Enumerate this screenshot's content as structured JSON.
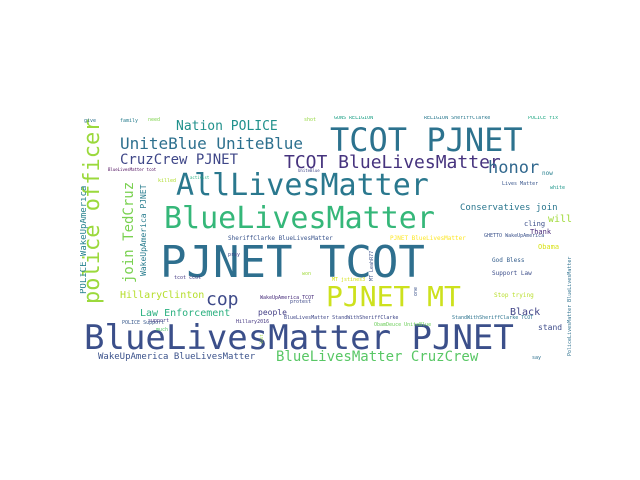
{
  "words": [
    {
      "text": "PJNET TCOT",
      "color": "#2e6f8e"
    },
    {
      "text": "BlueLivesMatter PJNET",
      "color": "#3b4f8a"
    },
    {
      "text": "AllLivesMatter",
      "color": "#2a788e"
    },
    {
      "text": "BlueLivesMatter",
      "color": "#35b779"
    },
    {
      "text": "TCOT PJNET",
      "color": "#2c728e"
    },
    {
      "text": "PJNET MT",
      "color": "#cde11d"
    },
    {
      "text": "police officer",
      "color": "#9bd93c"
    },
    {
      "text": "TCOT BlueLivesMatter",
      "color": "#46337e"
    },
    {
      "text": "UniteBlue UniteBlue",
      "color": "#2d708e"
    },
    {
      "text": "CruzCrew PJNET",
      "color": "#3f4788"
    },
    {
      "text": "cop",
      "color": "#3e4a89"
    },
    {
      "text": "honor",
      "color": "#31688e"
    },
    {
      "text": "join TedCruz",
      "color": "#7ad151"
    },
    {
      "text": "BlueLivesMatter CruzCrew",
      "color": "#58c765"
    },
    {
      "text": "Nation POLICE",
      "color": "#21918c"
    },
    {
      "text": "POLICE WakeUpAmerica",
      "color": "#26828e"
    },
    {
      "text": "WakeUpAmerica PJNET",
      "color": "#287c8e"
    },
    {
      "text": "HillaryClinton",
      "color": "#b5de2b"
    },
    {
      "text": "Law Enforcement",
      "color": "#2ab07f"
    },
    {
      "text": "WakeUpAmerica BlueLivesMatter",
      "color": "#3b528b"
    },
    {
      "text": "Conservatives join",
      "color": "#2a768e"
    },
    {
      "text": "Black",
      "color": "#414487"
    },
    {
      "text": "will",
      "color": "#a0da39"
    },
    {
      "text": "people",
      "color": "#433e85"
    },
    {
      "text": "stand",
      "color": "#3e4c8a"
    },
    {
      "text": "Obama",
      "color": "#d8e219"
    },
    {
      "text": "God Bless",
      "color": "#355f8d"
    },
    {
      "text": "Support Law",
      "color": "#3d4e8a"
    },
    {
      "text": "Stop trying",
      "color": "#b8de29"
    },
    {
      "text": "cling",
      "color": "#3c4f8a"
    },
    {
      "text": "Thank",
      "color": "#482878"
    },
    {
      "text": "now",
      "color": "#277f8e"
    },
    {
      "text": "SheriffClarke BlueLivesMatter",
      "color": "#3a548c"
    },
    {
      "text": "PJNET BlueLivesMatter",
      "color": "#fde725"
    },
    {
      "text": "GHETTO WakeUpAmerica",
      "color": "#3b528b"
    },
    {
      "text": "WakeUpAmerica TCOT",
      "color": "#472d7b"
    },
    {
      "text": "protest",
      "color": "#3e4989"
    },
    {
      "text": "Hillary2016",
      "color": "#453781"
    },
    {
      "text": "POLICE Support",
      "color": "#38598c"
    },
    {
      "text": "BlueLivesMatter StandWithSheriffClarke",
      "color": "#3f4788"
    },
    {
      "text": "StandWithSheriffClarke TCOT",
      "color": "#2c738e"
    },
    {
      "text": "ObamDeuce UniteBlue",
      "color": "#6ccd5a"
    },
    {
      "text": "tcot ccot",
      "color": "#443a83"
    },
    {
      "text": "pray",
      "color": "#404688"
    },
    {
      "text": "MT jstines3",
      "color": "#d5e21a"
    },
    {
      "text": "MT LeahR77",
      "color": "#3b528b"
    },
    {
      "text": "GUNS RELIGION",
      "color": "#1fa187"
    },
    {
      "text": "RELIGION SheriffClarke",
      "color": "#2a788e"
    },
    {
      "text": "POLICE fix",
      "color": "#22a884"
    },
    {
      "text": "BlueLivesMatter tcot",
      "color": "#440154"
    },
    {
      "text": "UniteBlue",
      "color": "#3f4788"
    },
    {
      "text": "family",
      "color": "#287d8e"
    },
    {
      "text": "need",
      "color": "#7fd34e"
    },
    {
      "text": "give",
      "color": "#2d708e"
    },
    {
      "text": "shot",
      "color": "#95d840"
    },
    {
      "text": "killed",
      "color": "#b0dd2f"
    },
    {
      "text": "activist",
      "color": "#29af7f"
    },
    {
      "text": "say",
      "color": "#2d708e"
    },
    {
      "text": "white",
      "color": "#1f968b"
    },
    {
      "text": "Lives Matter",
      "color": "#39568c"
    },
    {
      "text": "PoliceLivesMatter BlueLivesMatter",
      "color": "#2d708e"
    },
    {
      "text": "one",
      "color": "#3b528b"
    },
    {
      "text": "much",
      "color": "#52c569"
    },
    {
      "text": "support",
      "color": "#443983"
    },
    {
      "text": "lost",
      "color": "#9fda3a"
    },
    {
      "text": "won",
      "color": "#9fda3a"
    }
  ]
}
